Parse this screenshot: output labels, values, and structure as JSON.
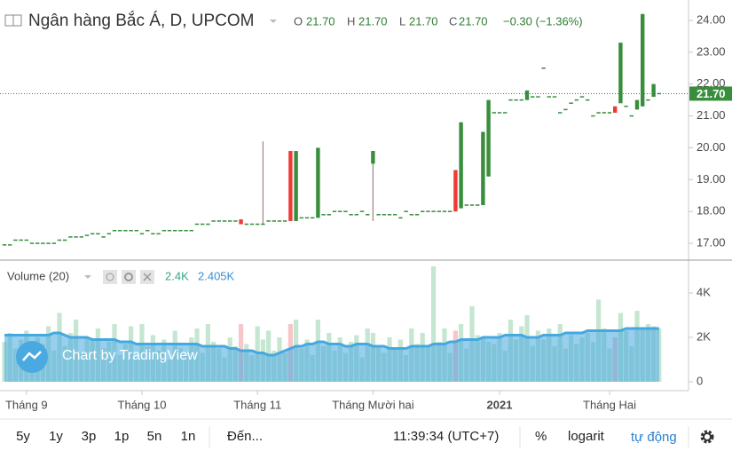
{
  "header": {
    "title": "Ngân hàng Bắc Á, D, UPCOM",
    "o_label": "O",
    "o": "21.70",
    "h_label": "H",
    "h": "21.70",
    "l_label": "L",
    "l": "21.70",
    "c_label": "C",
    "c": "21.70",
    "change": "−0.30 (−1.36%)"
  },
  "volume_legend": {
    "name": "Volume (20)",
    "volume": "2.4K",
    "ma": "2.405K"
  },
  "watermark": "Chart by TradingView",
  "toolbar": {
    "ranges": [
      "5y",
      "1y",
      "3p",
      "1p",
      "5n",
      "1n"
    ],
    "goto": "Đến...",
    "time": "11:39:34 (UTC+7)",
    "percent": "%",
    "log": "logarit",
    "auto": "tự động"
  },
  "chart_data": {
    "type": "candlestick",
    "categories": [
      null,
      null,
      null,
      null,
      "Tháng 9",
      null,
      null,
      null,
      null,
      null,
      null,
      null,
      null,
      null,
      null,
      null,
      null,
      null,
      null,
      null,
      null,
      null,
      null,
      null,
      null,
      "Tháng 10",
      null,
      null,
      null,
      null,
      null,
      null,
      null,
      null,
      null,
      null,
      null,
      null,
      null,
      null,
      null,
      null,
      null,
      null,
      null,
      null,
      "Tháng 11",
      null,
      null,
      null,
      null,
      null,
      null,
      null,
      null,
      null,
      null,
      null,
      null,
      null,
      null,
      null,
      null,
      null,
      null,
      null,
      null,
      "Tháng Mười hai",
      null,
      null,
      null,
      null,
      null,
      null,
      null,
      null,
      null,
      null,
      null,
      null,
      null,
      null,
      null,
      null,
      null,
      null,
      null,
      null,
      null,
      null,
      "2021",
      null,
      null,
      null,
      null,
      null,
      null,
      null,
      null,
      null,
      null,
      null,
      null,
      null,
      null,
      null,
      null,
      null,
      null,
      null,
      "Tháng Hai",
      null,
      null,
      null,
      null,
      null,
      null,
      null,
      null,
      null
    ],
    "open": [
      16.95,
      16.95,
      17.1,
      17.1,
      17.1,
      17.0,
      17.0,
      17.0,
      17.0,
      17.0,
      17.1,
      17.1,
      17.2,
      17.2,
      17.2,
      17.25,
      17.3,
      17.3,
      17.2,
      17.3,
      17.4,
      17.4,
      17.4,
      17.4,
      17.4,
      17.3,
      17.4,
      17.3,
      17.3,
      17.4,
      17.4,
      17.4,
      17.4,
      17.4,
      17.4,
      17.6,
      17.6,
      17.6,
      17.7,
      17.7,
      17.7,
      17.7,
      17.7,
      17.75,
      17.6,
      17.6,
      17.6,
      17.6,
      17.7,
      17.7,
      17.7,
      17.7,
      19.9,
      17.7,
      17.8,
      17.8,
      17.8,
      17.8,
      17.9,
      17.9,
      18.0,
      18.0,
      18.0,
      17.9,
      17.9,
      18.0,
      17.9,
      19.5,
      17.9,
      17.9,
      17.9,
      17.9,
      17.8,
      18.0,
      17.9,
      17.9,
      18.0,
      18.0,
      18.0,
      18.0,
      18.0,
      18.0,
      19.3,
      18.1,
      18.2,
      18.2,
      18.2,
      18.2,
      19.1,
      21.1,
      21.1,
      21.1,
      21.5,
      21.5,
      21.5,
      21.5,
      21.6,
      21.6,
      22.5,
      21.6,
      21.6,
      21.1,
      21.2,
      21.4,
      21.5,
      21.6,
      21.5,
      21.0,
      21.1,
      21.1,
      21.1,
      21.3,
      21.4,
      21.3,
      21.0,
      21.2,
      21.3,
      21.5,
      21.6,
      21.7
    ],
    "high": [
      16.95,
      16.95,
      17.1,
      17.1,
      17.1,
      17.0,
      17.0,
      17.0,
      17.0,
      17.0,
      17.1,
      17.1,
      17.2,
      17.2,
      17.2,
      17.25,
      17.3,
      17.3,
      17.2,
      17.3,
      17.4,
      17.4,
      17.4,
      17.4,
      17.4,
      17.3,
      17.4,
      17.3,
      17.3,
      17.4,
      17.4,
      17.4,
      17.4,
      17.4,
      17.4,
      17.6,
      17.6,
      17.6,
      17.7,
      17.7,
      17.7,
      17.7,
      17.7,
      17.75,
      17.6,
      17.6,
      17.6,
      20.2,
      17.7,
      17.7,
      17.7,
      17.7,
      19.9,
      19.9,
      17.8,
      17.8,
      17.8,
      20.0,
      17.9,
      17.9,
      18.0,
      18.0,
      18.0,
      17.9,
      17.9,
      18.0,
      17.9,
      19.9,
      17.9,
      17.9,
      17.9,
      17.9,
      17.8,
      18.0,
      17.9,
      17.9,
      18.0,
      18.0,
      18.0,
      18.0,
      18.0,
      18.0,
      19.3,
      20.8,
      18.2,
      18.2,
      18.2,
      20.5,
      21.5,
      21.1,
      21.1,
      21.1,
      21.5,
      21.5,
      21.5,
      21.8,
      21.6,
      21.6,
      22.5,
      21.6,
      21.6,
      21.1,
      21.2,
      21.4,
      21.5,
      21.6,
      21.5,
      21.0,
      21.1,
      21.1,
      21.1,
      21.3,
      23.3,
      21.3,
      21.0,
      21.5,
      24.2,
      21.5,
      22.0,
      21.7
    ],
    "low": [
      16.95,
      16.95,
      17.1,
      17.1,
      17.1,
      17.0,
      17.0,
      17.0,
      17.0,
      17.0,
      17.1,
      17.1,
      17.2,
      17.2,
      17.2,
      17.25,
      17.3,
      17.3,
      17.2,
      17.3,
      17.4,
      17.4,
      17.4,
      17.4,
      17.4,
      17.3,
      17.4,
      17.3,
      17.3,
      17.4,
      17.4,
      17.4,
      17.4,
      17.4,
      17.4,
      17.6,
      17.6,
      17.6,
      17.7,
      17.7,
      17.7,
      17.7,
      17.7,
      17.6,
      17.6,
      17.6,
      17.6,
      17.6,
      17.7,
      17.7,
      17.7,
      17.7,
      17.7,
      17.7,
      17.8,
      17.8,
      17.8,
      17.8,
      17.9,
      17.9,
      18.0,
      18.0,
      18.0,
      17.9,
      17.9,
      18.0,
      17.9,
      17.7,
      17.9,
      17.9,
      17.9,
      17.9,
      17.8,
      18.0,
      17.9,
      17.9,
      18.0,
      18.0,
      18.0,
      18.0,
      18.0,
      18.0,
      18.0,
      18.1,
      18.2,
      18.2,
      18.2,
      18.2,
      19.1,
      21.1,
      21.1,
      21.1,
      21.5,
      21.5,
      21.5,
      21.5,
      21.6,
      21.6,
      22.5,
      21.6,
      21.6,
      21.1,
      21.2,
      21.4,
      21.5,
      21.6,
      21.5,
      21.0,
      21.1,
      21.1,
      21.1,
      21.1,
      21.4,
      21.3,
      21.0,
      21.2,
      21.3,
      21.5,
      21.6,
      21.7
    ],
    "close": [
      16.95,
      16.95,
      17.1,
      17.1,
      17.1,
      17.0,
      17.0,
      17.0,
      17.0,
      17.0,
      17.1,
      17.1,
      17.2,
      17.2,
      17.2,
      17.25,
      17.3,
      17.3,
      17.2,
      17.3,
      17.4,
      17.4,
      17.4,
      17.4,
      17.4,
      17.3,
      17.4,
      17.3,
      17.3,
      17.4,
      17.4,
      17.4,
      17.4,
      17.4,
      17.4,
      17.6,
      17.6,
      17.6,
      17.7,
      17.7,
      17.7,
      17.7,
      17.7,
      17.6,
      17.6,
      17.6,
      17.6,
      17.6,
      17.7,
      17.7,
      17.7,
      17.7,
      17.7,
      19.9,
      17.8,
      17.8,
      17.8,
      20.0,
      17.9,
      17.9,
      18.0,
      18.0,
      18.0,
      17.9,
      17.9,
      18.0,
      17.9,
      19.9,
      17.9,
      17.9,
      17.9,
      17.9,
      17.8,
      18.0,
      17.9,
      17.9,
      18.0,
      18.0,
      18.0,
      18.0,
      18.0,
      18.0,
      18.0,
      20.8,
      18.2,
      18.2,
      18.2,
      20.5,
      21.5,
      21.1,
      21.1,
      21.1,
      21.5,
      21.5,
      21.5,
      21.8,
      21.6,
      21.6,
      22.5,
      21.6,
      21.6,
      21.1,
      21.2,
      21.4,
      21.5,
      21.6,
      21.5,
      21.0,
      21.1,
      21.1,
      21.1,
      21.1,
      23.3,
      21.3,
      21.0,
      21.5,
      24.2,
      21.5,
      22.0,
      21.7
    ],
    "up_color": "#388e3c",
    "down_color": "#ef3b36",
    "ylim": [
      16.5,
      24.64
    ],
    "yticks": [
      {
        "value": 17,
        "label": "17.00"
      },
      {
        "value": 18,
        "label": "18.00"
      },
      {
        "value": 19,
        "label": "19.00"
      },
      {
        "value": 20,
        "label": "20.00"
      },
      {
        "value": 21,
        "label": "21.00"
      },
      {
        "value": 22,
        "label": "22.00"
      },
      {
        "value": 23,
        "label": "23.00"
      },
      {
        "value": 24,
        "label": "24.00"
      }
    ],
    "last_price": {
      "value": 21.7,
      "label": "21.70"
    },
    "volume": [
      1800,
      2200,
      1500,
      1900,
      2300,
      1200,
      2000,
      1700,
      2500,
      1400,
      3100,
      1600,
      2200,
      2800,
      1300,
      2000,
      1900,
      2400,
      1500,
      1800,
      2600,
      1200,
      1700,
      2500,
      1100,
      2600,
      1600,
      2100,
      1400,
      1900,
      1000,
      2300,
      1500,
      1200,
      2000,
      2400,
      1300,
      2600,
      1800,
      1500,
      1100,
      2000,
      1600,
      2600,
      1700,
      1200,
      2500,
      1900,
      2300,
      1400,
      2000,
      1300,
      2600,
      2800,
      1500,
      1900,
      1200,
      2800,
      1600,
      2200,
      1400,
      2000,
      1300,
      1800,
      2100,
      1100,
      2400,
      2200,
      1600,
      1300,
      2000,
      1500,
      1900,
      1200,
      2400,
      1700,
      2200,
      1600,
      5200,
      1800,
      2400,
      1300,
      2300,
      2600,
      1500,
      3400,
      2100,
      2000,
      1800,
      1700,
      2200,
      1400,
      2800,
      1900,
      2500,
      3000,
      1600,
      2300,
      1900,
      2400,
      1600,
      2600,
      1500,
      2100,
      1700,
      2000,
      2200,
      1800,
      3700,
      2400,
      1500,
      2000,
      3100,
      2300,
      1600,
      3200,
      2400,
      2600,
      2500,
      2400
    ],
    "volume_ma": [
      2100,
      2100,
      2100,
      2100,
      2100,
      2100,
      2100,
      2100,
      2100,
      2200,
      2200,
      2100,
      2000,
      2000,
      2000,
      2000,
      1900,
      1900,
      1900,
      1900,
      1900,
      1800,
      1800,
      1800,
      1700,
      1700,
      1700,
      1700,
      1700,
      1700,
      1700,
      1700,
      1700,
      1700,
      1700,
      1700,
      1600,
      1600,
      1600,
      1600,
      1600,
      1500,
      1500,
      1400,
      1400,
      1400,
      1300,
      1300,
      1200,
      1200,
      1300,
      1400,
      1500,
      1600,
      1600,
      1700,
      1700,
      1800,
      1800,
      1700,
      1700,
      1700,
      1600,
      1600,
      1700,
      1700,
      1700,
      1600,
      1600,
      1600,
      1500,
      1500,
      1500,
      1500,
      1600,
      1600,
      1600,
      1600,
      1700,
      1700,
      1700,
      1800,
      1800,
      1900,
      1900,
      1900,
      1900,
      2000,
      2000,
      2000,
      2000,
      2100,
      2100,
      2100,
      2100,
      2000,
      2000,
      2000,
      2100,
      2100,
      2100,
      2100,
      2200,
      2200,
      2200,
      2200,
      2300,
      2300,
      2300,
      2300,
      2300,
      2300,
      2300,
      2400,
      2400,
      2400,
      2400,
      2400,
      2400,
      2400
    ],
    "volume_up_color": "#c5e6d0",
    "volume_down_color": "#f6c6c8",
    "volume_ma_color": "#45a8e0",
    "volume_ylim": [
      0,
      5280
    ],
    "volume_yticks": [
      0,
      {
        "value": 2000,
        "label": "2K"
      },
      {
        "value": 4000,
        "label": "4K"
      }
    ]
  }
}
